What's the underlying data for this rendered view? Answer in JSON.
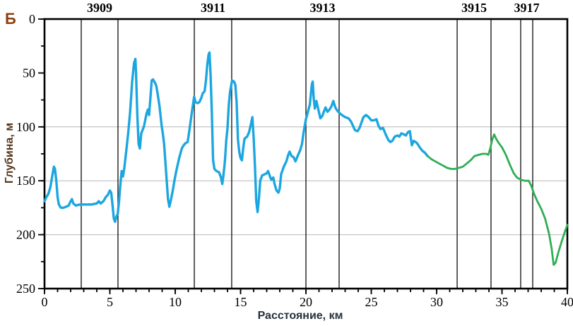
{
  "panel_label": "Б",
  "chart_data": {
    "type": "line",
    "title": "",
    "xlabel": "Расстояние, км",
    "ylabel": "Глубина, м",
    "xlim": [
      0,
      40
    ],
    "ylim": [
      0,
      250
    ],
    "y_inverted": true,
    "grid": "horizontal-only",
    "legend": "none",
    "x_major_ticks": [
      0,
      5,
      10,
      15,
      20,
      25,
      30,
      35,
      40
    ],
    "x_minor_step": 1,
    "y_major_ticks": [
      0,
      50,
      100,
      150,
      200,
      250
    ],
    "y_minor_step": 25,
    "gridlines_y": [
      100,
      150,
      200
    ],
    "markers": [
      {
        "label": "3909",
        "x1": 2.81,
        "x2": 5.62
      },
      {
        "label": "3911",
        "x1": 11.46,
        "x2": 14.32
      },
      {
        "label": "3913",
        "x1": 20.0,
        "x2": 22.54
      },
      {
        "label": "3915",
        "x1": 31.57,
        "x2": 34.16
      },
      {
        "label": "3917",
        "x1": 36.43,
        "x2": 37.35
      }
    ],
    "series": [
      {
        "name": "depth-profile-measured",
        "color": "#1ca6e0",
        "width": 3.4,
        "points": [
          [
            0,
            169
          ],
          [
            0.15,
            165
          ],
          [
            0.3,
            162
          ],
          [
            0.45,
            156
          ],
          [
            0.6,
            145
          ],
          [
            0.72,
            137
          ],
          [
            0.8,
            139
          ],
          [
            0.9,
            150
          ],
          [
            1.0,
            165
          ],
          [
            1.1,
            172
          ],
          [
            1.25,
            175
          ],
          [
            1.45,
            175
          ],
          [
            1.65,
            174
          ],
          [
            1.85,
            173
          ],
          [
            2.0,
            169
          ],
          [
            2.1,
            167
          ],
          [
            2.2,
            171
          ],
          [
            2.4,
            173
          ],
          [
            2.7,
            172
          ],
          [
            3.1,
            172
          ],
          [
            3.6,
            172
          ],
          [
            4.0,
            171
          ],
          [
            4.15,
            169
          ],
          [
            4.3,
            171
          ],
          [
            4.5,
            169
          ],
          [
            4.7,
            165
          ],
          [
            4.85,
            163
          ],
          [
            5.0,
            159
          ],
          [
            5.1,
            161
          ],
          [
            5.2,
            172
          ],
          [
            5.3,
            185
          ],
          [
            5.4,
            188
          ],
          [
            5.5,
            183
          ],
          [
            5.6,
            181
          ],
          [
            5.7,
            169
          ],
          [
            5.8,
            154
          ],
          [
            5.9,
            141
          ],
          [
            6.0,
            146
          ],
          [
            6.1,
            139
          ],
          [
            6.25,
            123
          ],
          [
            6.4,
            106
          ],
          [
            6.55,
            86
          ],
          [
            6.7,
            59
          ],
          [
            6.85,
            41
          ],
          [
            6.95,
            37
          ],
          [
            7.0,
            49
          ],
          [
            7.1,
            88
          ],
          [
            7.2,
            116
          ],
          [
            7.3,
            120
          ],
          [
            7.4,
            106
          ],
          [
            7.5,
            103
          ],
          [
            7.6,
            100
          ],
          [
            7.7,
            94
          ],
          [
            7.8,
            88
          ],
          [
            7.9,
            84
          ],
          [
            8.0,
            89
          ],
          [
            8.1,
            74
          ],
          [
            8.2,
            57
          ],
          [
            8.3,
            56
          ],
          [
            8.45,
            59
          ],
          [
            8.55,
            62
          ],
          [
            8.65,
            69
          ],
          [
            8.8,
            81
          ],
          [
            8.95,
            98
          ],
          [
            9.05,
            106
          ],
          [
            9.15,
            116
          ],
          [
            9.3,
            142
          ],
          [
            9.45,
            167
          ],
          [
            9.55,
            174
          ],
          [
            9.65,
            169
          ],
          [
            9.8,
            160
          ],
          [
            9.95,
            149
          ],
          [
            10.1,
            140
          ],
          [
            10.3,
            129
          ],
          [
            10.5,
            120
          ],
          [
            10.65,
            117
          ],
          [
            10.8,
            115
          ],
          [
            10.95,
            114
          ],
          [
            11.1,
            102
          ],
          [
            11.3,
            84
          ],
          [
            11.45,
            72
          ],
          [
            11.55,
            77
          ],
          [
            11.7,
            78
          ],
          [
            11.85,
            77
          ],
          [
            12.0,
            73
          ],
          [
            12.1,
            69
          ],
          [
            12.25,
            67
          ],
          [
            12.35,
            57
          ],
          [
            12.45,
            43
          ],
          [
            12.55,
            33
          ],
          [
            12.62,
            31
          ],
          [
            12.7,
            51
          ],
          [
            12.8,
            86
          ],
          [
            12.9,
            131
          ],
          [
            13.0,
            139
          ],
          [
            13.15,
            141
          ],
          [
            13.35,
            142
          ],
          [
            13.5,
            147
          ],
          [
            13.6,
            153
          ],
          [
            13.7,
            144
          ],
          [
            13.8,
            132
          ],
          [
            13.9,
            113
          ],
          [
            14.0,
            101
          ],
          [
            14.1,
            80
          ],
          [
            14.2,
            67
          ],
          [
            14.35,
            57
          ],
          [
            14.5,
            58
          ],
          [
            14.6,
            61
          ],
          [
            14.7,
            77
          ],
          [
            14.8,
            112
          ],
          [
            14.9,
            123
          ],
          [
            15.0,
            129
          ],
          [
            15.1,
            131
          ],
          [
            15.2,
            120
          ],
          [
            15.3,
            111
          ],
          [
            15.5,
            109
          ],
          [
            15.65,
            105
          ],
          [
            15.8,
            97
          ],
          [
            15.9,
            91
          ],
          [
            16.0,
            110
          ],
          [
            16.1,
            137
          ],
          [
            16.2,
            169
          ],
          [
            16.3,
            179
          ],
          [
            16.4,
            167
          ],
          [
            16.5,
            150
          ],
          [
            16.65,
            145
          ],
          [
            16.85,
            144
          ],
          [
            17.0,
            143
          ],
          [
            17.1,
            141
          ],
          [
            17.25,
            146
          ],
          [
            17.35,
            149
          ],
          [
            17.5,
            147
          ],
          [
            17.6,
            153
          ],
          [
            17.75,
            159
          ],
          [
            17.9,
            161
          ],
          [
            18.0,
            157
          ],
          [
            18.1,
            144
          ],
          [
            18.3,
            137
          ],
          [
            18.5,
            132
          ],
          [
            18.65,
            126
          ],
          [
            18.75,
            123
          ],
          [
            18.9,
            127
          ],
          [
            19.05,
            128
          ],
          [
            19.2,
            132
          ],
          [
            19.4,
            126
          ],
          [
            19.55,
            122
          ],
          [
            19.7,
            116
          ],
          [
            19.85,
            103
          ],
          [
            20.0,
            93
          ],
          [
            20.15,
            86
          ],
          [
            20.3,
            79
          ],
          [
            20.45,
            61
          ],
          [
            20.52,
            58
          ],
          [
            20.6,
            74
          ],
          [
            20.68,
            83
          ],
          [
            20.8,
            76
          ],
          [
            20.95,
            84
          ],
          [
            21.1,
            92
          ],
          [
            21.25,
            90
          ],
          [
            21.4,
            85
          ],
          [
            21.5,
            82
          ],
          [
            21.65,
            86
          ],
          [
            21.8,
            84
          ],
          [
            21.95,
            81
          ],
          [
            22.1,
            76
          ],
          [
            22.25,
            82
          ],
          [
            22.4,
            85
          ],
          [
            22.55,
            87
          ],
          [
            22.75,
            89
          ],
          [
            23.0,
            91
          ],
          [
            23.25,
            92
          ],
          [
            23.45,
            95
          ],
          [
            23.6,
            99
          ],
          [
            23.75,
            103
          ],
          [
            23.95,
            104
          ],
          [
            24.1,
            101
          ],
          [
            24.25,
            96
          ],
          [
            24.4,
            91
          ],
          [
            24.6,
            89
          ],
          [
            24.8,
            91
          ],
          [
            25.0,
            94
          ],
          [
            25.2,
            94
          ],
          [
            25.4,
            93
          ],
          [
            25.55,
            99
          ],
          [
            25.7,
            102
          ],
          [
            25.9,
            101
          ],
          [
            26.1,
            107
          ],
          [
            26.3,
            112
          ],
          [
            26.45,
            114
          ],
          [
            26.6,
            113
          ],
          [
            26.8,
            109
          ],
          [
            27.0,
            108
          ],
          [
            27.15,
            109
          ],
          [
            27.3,
            106
          ],
          [
            27.5,
            107
          ],
          [
            27.65,
            108
          ],
          [
            27.8,
            105
          ],
          [
            27.95,
            104
          ],
          [
            28.1,
            117
          ],
          [
            28.25,
            113
          ],
          [
            28.4,
            114
          ],
          [
            28.55,
            116
          ],
          [
            28.7,
            119
          ],
          [
            28.9,
            122
          ],
          [
            29.1,
            124
          ],
          [
            29.3,
            127
          ]
        ]
      },
      {
        "name": "depth-profile-extension",
        "color": "#2fae54",
        "width": 2.8,
        "points": [
          [
            29.3,
            127
          ],
          [
            29.6,
            130
          ],
          [
            29.9,
            132
          ],
          [
            30.2,
            134
          ],
          [
            30.5,
            136
          ],
          [
            30.8,
            138
          ],
          [
            31.1,
            139
          ],
          [
            31.4,
            139
          ],
          [
            31.7,
            138
          ],
          [
            32.0,
            137
          ],
          [
            32.3,
            134
          ],
          [
            32.6,
            131
          ],
          [
            32.9,
            127
          ],
          [
            33.2,
            126
          ],
          [
            33.5,
            125
          ],
          [
            33.8,
            125
          ],
          [
            33.95,
            126
          ],
          [
            34.1,
            120
          ],
          [
            34.25,
            112
          ],
          [
            34.4,
            107
          ],
          [
            34.55,
            111
          ],
          [
            34.75,
            115
          ],
          [
            35.0,
            119
          ],
          [
            35.3,
            126
          ],
          [
            35.6,
            135
          ],
          [
            35.9,
            143
          ],
          [
            36.15,
            147
          ],
          [
            36.45,
            149
          ],
          [
            36.75,
            150
          ],
          [
            37.05,
            150
          ],
          [
            37.25,
            155
          ],
          [
            37.45,
            162
          ],
          [
            37.7,
            169
          ],
          [
            38.0,
            176
          ],
          [
            38.3,
            185
          ],
          [
            38.6,
            199
          ],
          [
            38.8,
            213
          ],
          [
            38.95,
            228
          ],
          [
            39.1,
            226
          ],
          [
            39.3,
            217
          ],
          [
            39.6,
            205
          ],
          [
            39.85,
            196
          ],
          [
            40.0,
            191
          ]
        ]
      }
    ]
  },
  "colors": {
    "grid": "#b8b8b8",
    "frame": "#000000",
    "marker_line": "#1c1c1c",
    "tick": "#000000",
    "tick_label": "#000000",
    "marker_label": "#000000",
    "panel_label": "#8a4212",
    "xlabel": "#25313c",
    "ylabel": "#54341a"
  }
}
